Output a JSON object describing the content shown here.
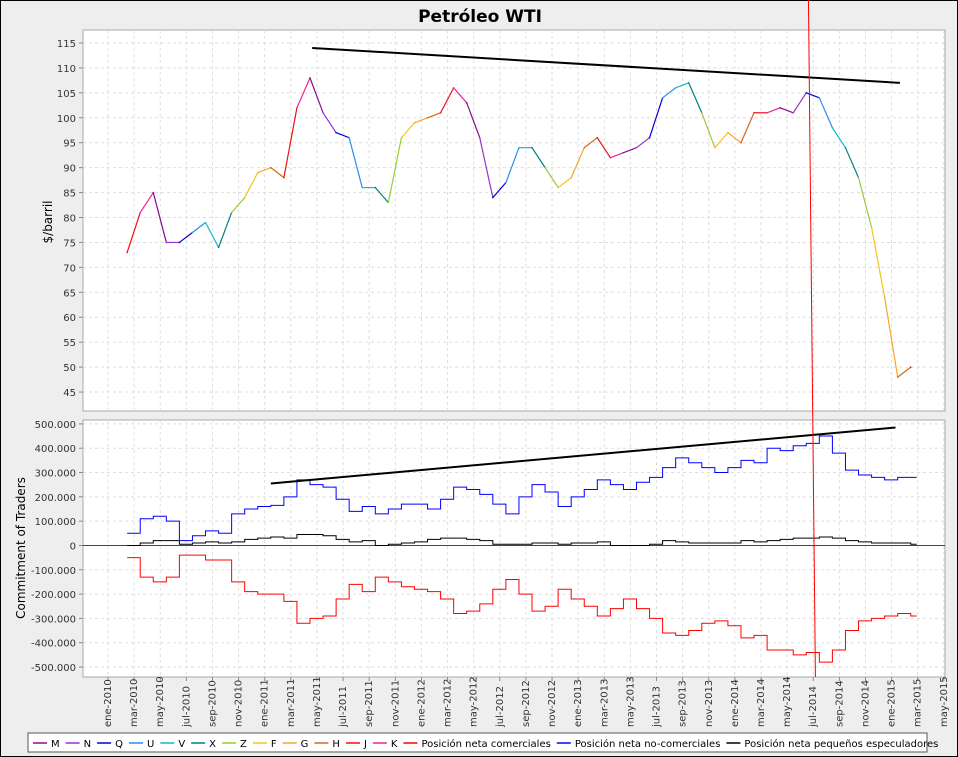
{
  "chart_data": {
    "type": "line",
    "title": "Petróleo WTI",
    "x_tick_labels": [
      "ene-2010",
      "mar-2010",
      "may-2010",
      "jul-2010",
      "sep-2010",
      "nov-2010",
      "ene-2011",
      "mar-2011",
      "may-2011",
      "jul-2011",
      "sep-2011",
      "nov-2011",
      "ene-2012",
      "mar-2012",
      "may-2012",
      "jul-2012",
      "sep-2012",
      "nov-2012",
      "ene-2013",
      "mar-2013",
      "may-2013",
      "jul-2013",
      "sep-2013",
      "nov-2013",
      "ene-2014",
      "mar-2014",
      "may-2014",
      "jul-2014",
      "sep-2014",
      "nov-2014",
      "ene-2015",
      "mar-2015",
      "may-2015"
    ],
    "x_range": [
      "2009-12-01",
      "2015-05-01"
    ],
    "grid": true,
    "legend_placement": "bottom",
    "contract_colors": {
      "M": "#8b0a8b",
      "N": "#9933cc",
      "Q": "#0000dd",
      "U": "#2a8cf0",
      "V": "#11bbcc",
      "X": "#008080",
      "Z": "#99cc33",
      "F": "#f5c518",
      "G": "#f5a623",
      "H": "#d2691e",
      "J": "#ee1111",
      "K": "#ee2299"
    },
    "panels": [
      {
        "ylabel": "$/barril",
        "ylim": [
          41.2,
          117.6
        ],
        "y_ticks": [
          45,
          50,
          55,
          60,
          65,
          70,
          75,
          80,
          85,
          90,
          95,
          100,
          105,
          110,
          115
        ],
        "price": {
          "dates": [
            "2010-02",
            "2010-03",
            "2010-04",
            "2010-05",
            "2010-06",
            "2010-07",
            "2010-08",
            "2010-09",
            "2010-10",
            "2010-11",
            "2010-12",
            "2011-01",
            "2011-02",
            "2011-03",
            "2011-04",
            "2011-05",
            "2011-06",
            "2011-07",
            "2011-08",
            "2011-09",
            "2011-10",
            "2011-11",
            "2011-12",
            "2012-01",
            "2012-02",
            "2012-03",
            "2012-04",
            "2012-05",
            "2012-06",
            "2012-07",
            "2012-08",
            "2012-09",
            "2012-10",
            "2012-11",
            "2012-12",
            "2013-01",
            "2013-02",
            "2013-03",
            "2013-04",
            "2013-05",
            "2013-06",
            "2013-07",
            "2013-08",
            "2013-09",
            "2013-10",
            "2013-11",
            "2013-12",
            "2014-01",
            "2014-02",
            "2014-03",
            "2014-04",
            "2014-05",
            "2014-06",
            "2014-07",
            "2014-08",
            "2014-09",
            "2014-10",
            "2014-11",
            "2014-12",
            "2015-01",
            "2015-02"
          ],
          "values": [
            73,
            81,
            85,
            75,
            75,
            77,
            79,
            74,
            81,
            84,
            89,
            90,
            88,
            102,
            108,
            101,
            97,
            96,
            86,
            86,
            83,
            96,
            99,
            100,
            101,
            106,
            103,
            96,
            84,
            87,
            94,
            94,
            90,
            86,
            88,
            94,
            96,
            92,
            93,
            94,
            96,
            104,
            106,
            107,
            101,
            94,
            97,
            95,
            101,
            101,
            102,
            101,
            105,
            104,
            98,
            94,
            88,
            78,
            64,
            48,
            50
          ],
          "contracts": [
            "J",
            "K",
            "M",
            "N",
            "Q",
            "U",
            "V",
            "X",
            "Z",
            "F",
            "G",
            "H",
            "J",
            "K",
            "M",
            "N",
            "Q",
            "U",
            "V",
            "X",
            "Z",
            "F",
            "G",
            "H",
            "J",
            "K",
            "M",
            "N",
            "Q",
            "U",
            "V",
            "X",
            "Z",
            "F",
            "G",
            "H",
            "J",
            "K",
            "M",
            "N",
            "Q",
            "U",
            "V",
            "X",
            "Z",
            "F",
            "G",
            "H",
            "J",
            "K",
            "M",
            "N",
            "Q",
            "U",
            "V",
            "X",
            "Z",
            "F",
            "G",
            "H",
            "J"
          ]
        },
        "trendline": {
          "from": [
            "2011-04-20",
            114
          ],
          "to": [
            "2015-01-20",
            107
          ],
          "color": "#000000"
        }
      },
      {
        "ylabel": "Commitment of Traders",
        "ylim": [
          -541000,
          516000
        ],
        "y_ticks": [
          -500000,
          -400000,
          -300000,
          -200000,
          -100000,
          0,
          100000,
          200000,
          300000,
          400000,
          500000
        ],
        "y_tick_labels": [
          "-500.000",
          "-400.000",
          "-300.000",
          "-200.000",
          "-100.000",
          "0",
          "100.000",
          "200.000",
          "300.000",
          "400.000",
          "500.000"
        ],
        "series": [
          {
            "name": "Posición neta comerciales",
            "color": "#ff0000",
            "values": [
              -50000,
              -130000,
              -150000,
              -130000,
              -40000,
              -40000,
              -60000,
              -60000,
              -150000,
              -190000,
              -200000,
              -200000,
              -230000,
              -320000,
              -300000,
              -290000,
              -220000,
              -160000,
              -190000,
              -130000,
              -150000,
              -170000,
              -180000,
              -190000,
              -220000,
              -280000,
              -270000,
              -240000,
              -180000,
              -140000,
              -200000,
              -270000,
              -250000,
              -180000,
              -220000,
              -250000,
              -290000,
              -260000,
              -220000,
              -260000,
              -300000,
              -360000,
              -370000,
              -350000,
              -320000,
              -310000,
              -330000,
              -380000,
              -370000,
              -430000,
              -430000,
              -450000,
              -440000,
              -480000,
              -430000,
              -350000,
              -310000,
              -300000,
              -290000,
              -280000,
              -290000
            ]
          },
          {
            "name": "Posición neta no-comerciales",
            "color": "#0000ff",
            "values": [
              50000,
              110000,
              120000,
              100000,
              20000,
              40000,
              60000,
              50000,
              130000,
              150000,
              160000,
              165000,
              200000,
              270000,
              250000,
              240000,
              190000,
              140000,
              160000,
              130000,
              150000,
              170000,
              170000,
              150000,
              190000,
              240000,
              230000,
              210000,
              170000,
              130000,
              200000,
              250000,
              220000,
              160000,
              200000,
              230000,
              270000,
              250000,
              230000,
              260000,
              280000,
              320000,
              360000,
              340000,
              320000,
              300000,
              320000,
              350000,
              340000,
              400000,
              390000,
              410000,
              420000,
              450000,
              380000,
              310000,
              290000,
              280000,
              270000,
              280000,
              280000
            ]
          },
          {
            "name": "Posición neta pequeños especuladores",
            "color": "#000000",
            "values": [
              0,
              10000,
              20000,
              20000,
              5000,
              10000,
              15000,
              10000,
              15000,
              25000,
              30000,
              35000,
              30000,
              45000,
              45000,
              40000,
              25000,
              15000,
              20000,
              0,
              5000,
              10000,
              15000,
              25000,
              30000,
              30000,
              25000,
              20000,
              5000,
              5000,
              5000,
              10000,
              10000,
              5000,
              10000,
              10000,
              15000,
              0,
              0,
              0,
              5000,
              20000,
              15000,
              10000,
              10000,
              10000,
              10000,
              20000,
              15000,
              20000,
              25000,
              30000,
              30000,
              35000,
              30000,
              20000,
              15000,
              10000,
              10000,
              10000,
              5000
            ]
          }
        ],
        "trendline": {
          "from": [
            "2011-01-15",
            255000
          ],
          "to": [
            "2015-01-10",
            485000
          ],
          "color": "#000000"
        }
      }
    ],
    "marker_line": {
      "from_date": "2014-06-20",
      "to_date": "2014-07-06",
      "color": "#ff0000"
    },
    "legend": [
      {
        "label": "M",
        "key": "M"
      },
      {
        "label": "N",
        "key": "N"
      },
      {
        "label": "Q",
        "key": "Q"
      },
      {
        "label": "U",
        "key": "U"
      },
      {
        "label": "V",
        "key": "V"
      },
      {
        "label": "X",
        "key": "X"
      },
      {
        "label": "Z",
        "key": "Z"
      },
      {
        "label": "F",
        "key": "F"
      },
      {
        "label": "G",
        "key": "G"
      },
      {
        "label": "H",
        "key": "H"
      },
      {
        "label": "J",
        "key": "J"
      },
      {
        "label": "K",
        "key": "K"
      },
      {
        "label": "Posición neta comerciales",
        "color": "#ff0000"
      },
      {
        "label": "Posición neta no-comerciales",
        "color": "#0000ff"
      },
      {
        "label": "Posición neta pequeños especuladores",
        "color": "#000000"
      }
    ]
  }
}
